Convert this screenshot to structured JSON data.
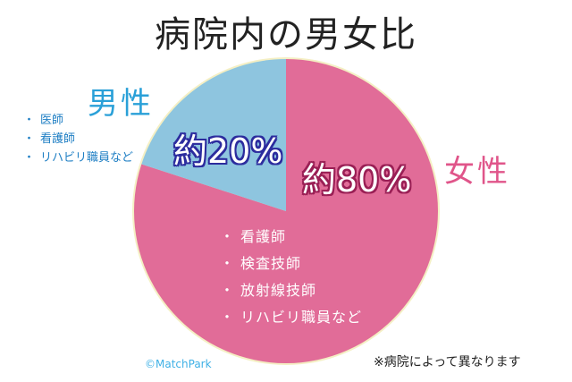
{
  "title": "病院内の男女比",
  "colors": {
    "male": "#8ec5df",
    "female": "#e16c98",
    "pie_border": "#f4efc4",
    "male_text": "#2aa0d8",
    "female_text": "#e0558a"
  },
  "chart_data": {
    "type": "pie",
    "title": "病院内の男女比",
    "slices": [
      {
        "label": "男性",
        "value": 20,
        "value_label": "約20%",
        "color": "#8ec5df"
      },
      {
        "label": "女性",
        "value": 80,
        "value_label": "約80%",
        "color": "#e16c98"
      }
    ]
  },
  "male": {
    "label": "男性",
    "pct_label": "約20%",
    "items": [
      "医師",
      "看護師",
      "リハビリ職員など"
    ]
  },
  "female": {
    "label": "女性",
    "pct_label": "約80%",
    "items": [
      "看護師",
      "検査技師",
      "放射線技師",
      "リハビリ職員など"
    ]
  },
  "bullet": "・",
  "credit": "©MatchPark",
  "note": "※病院によって異なります"
}
